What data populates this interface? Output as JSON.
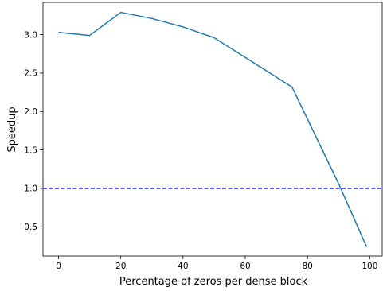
{
  "chart_data": {
    "type": "line",
    "title": "",
    "xlabel": "Percentage of zeros per dense block",
    "ylabel": "Speedup",
    "xlim": [
      -5,
      104
    ],
    "ylim": [
      0.12,
      3.42
    ],
    "xticks": [
      0,
      20,
      40,
      60,
      80,
      100
    ],
    "xtick_labels": [
      "0",
      "20",
      "40",
      "60",
      "80",
      "100"
    ],
    "yticks": [
      0.5,
      1.0,
      1.5,
      2.0,
      2.5,
      3.0
    ],
    "ytick_labels": [
      "0.5",
      "1.0",
      "1.5",
      "2.0",
      "2.5",
      "3.0"
    ],
    "grid": false,
    "series": [
      {
        "x": [
          0,
          10,
          20,
          30,
          40,
          50,
          75,
          90,
          99
        ],
        "y": [
          3.03,
          2.99,
          3.29,
          3.21,
          3.1,
          2.96,
          2.32,
          1.06,
          0.24
        ],
        "color": "#1f77b4"
      }
    ],
    "reference_line": {
      "y": 1.0,
      "color": "#0000cc",
      "style": "dashed"
    }
  }
}
